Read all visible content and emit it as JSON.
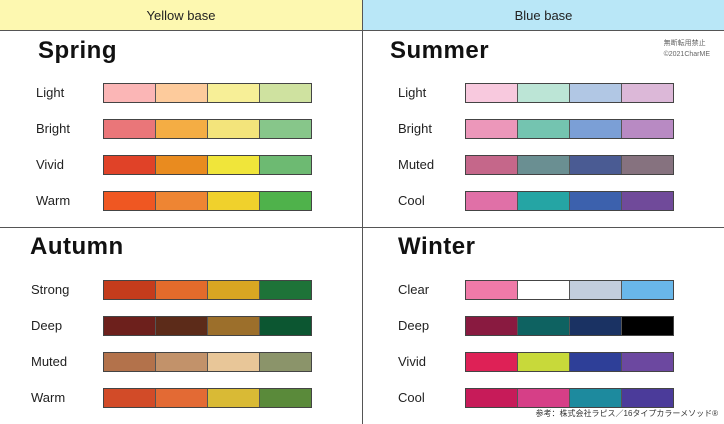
{
  "headers": {
    "yellow_base": "Yellow base",
    "blue_base": "Blue base"
  },
  "notice": {
    "line1": "無断転用禁止",
    "line2": "©2021CharME"
  },
  "credit": "参考：株式会社ラピス／16タイプカラーメソッド®",
  "seasons": [
    {
      "name": "Spring",
      "rows": [
        {
          "label": "Light",
          "colors": [
            "#fbb6b6",
            "#fdcb9c",
            "#f7ef97",
            "#cfe2a0"
          ]
        },
        {
          "label": "Bright",
          "colors": [
            "#ea7679",
            "#f4ad44",
            "#f3e47b",
            "#87c68a"
          ]
        },
        {
          "label": "Vivid",
          "colors": [
            "#e04228",
            "#e98b1f",
            "#f0e53a",
            "#6dba72"
          ]
        },
        {
          "label": "Warm",
          "colors": [
            "#ef5722",
            "#ee8533",
            "#f0d12c",
            "#4fb24b"
          ]
        }
      ]
    },
    {
      "name": "Summer",
      "rows": [
        {
          "label": "Light",
          "colors": [
            "#f8c9de",
            "#bce5d6",
            "#b1c7e4",
            "#dcb8d8"
          ]
        },
        {
          "label": "Bright",
          "colors": [
            "#ec97ba",
            "#74c4b0",
            "#7b9fd6",
            "#b88ac3"
          ]
        },
        {
          "label": "Muted",
          "colors": [
            "#c5678a",
            "#6a8f92",
            "#4a5b93",
            "#86727f"
          ]
        },
        {
          "label": "Cool",
          "colors": [
            "#e070a7",
            "#25a5a4",
            "#3c61ad",
            "#704a9a"
          ]
        }
      ]
    },
    {
      "name": "Autumn",
      "rows": [
        {
          "label": "Strong",
          "colors": [
            "#c43c1c",
            "#e36b2b",
            "#d9a622",
            "#1e7338"
          ]
        },
        {
          "label": "Deep",
          "colors": [
            "#6d201c",
            "#5c2b19",
            "#9c6f2b",
            "#0c5631"
          ]
        },
        {
          "label": "Muted",
          "colors": [
            "#b3724b",
            "#c2926a",
            "#e8c698",
            "#8b946a"
          ]
        },
        {
          "label": "Warm",
          "colors": [
            "#d24b28",
            "#e36a34",
            "#d9ba35",
            "#5a8a3a"
          ]
        }
      ]
    },
    {
      "name": "Winter",
      "rows": [
        {
          "label": "Clear",
          "colors": [
            "#f07aa8",
            "#ffffff",
            "#c3cddd",
            "#69b7ea"
          ]
        },
        {
          "label": "Deep",
          "colors": [
            "#891a40",
            "#0e6261",
            "#1a3263",
            "#000000"
          ]
        },
        {
          "label": "Vivid",
          "colors": [
            "#de2156",
            "#c8d93a",
            "#2e3f98",
            "#6c48a0"
          ]
        },
        {
          "label": "Cool",
          "colors": [
            "#c71b59",
            "#d63f87",
            "#1d8a9e",
            "#4b3b9a"
          ]
        }
      ]
    }
  ]
}
